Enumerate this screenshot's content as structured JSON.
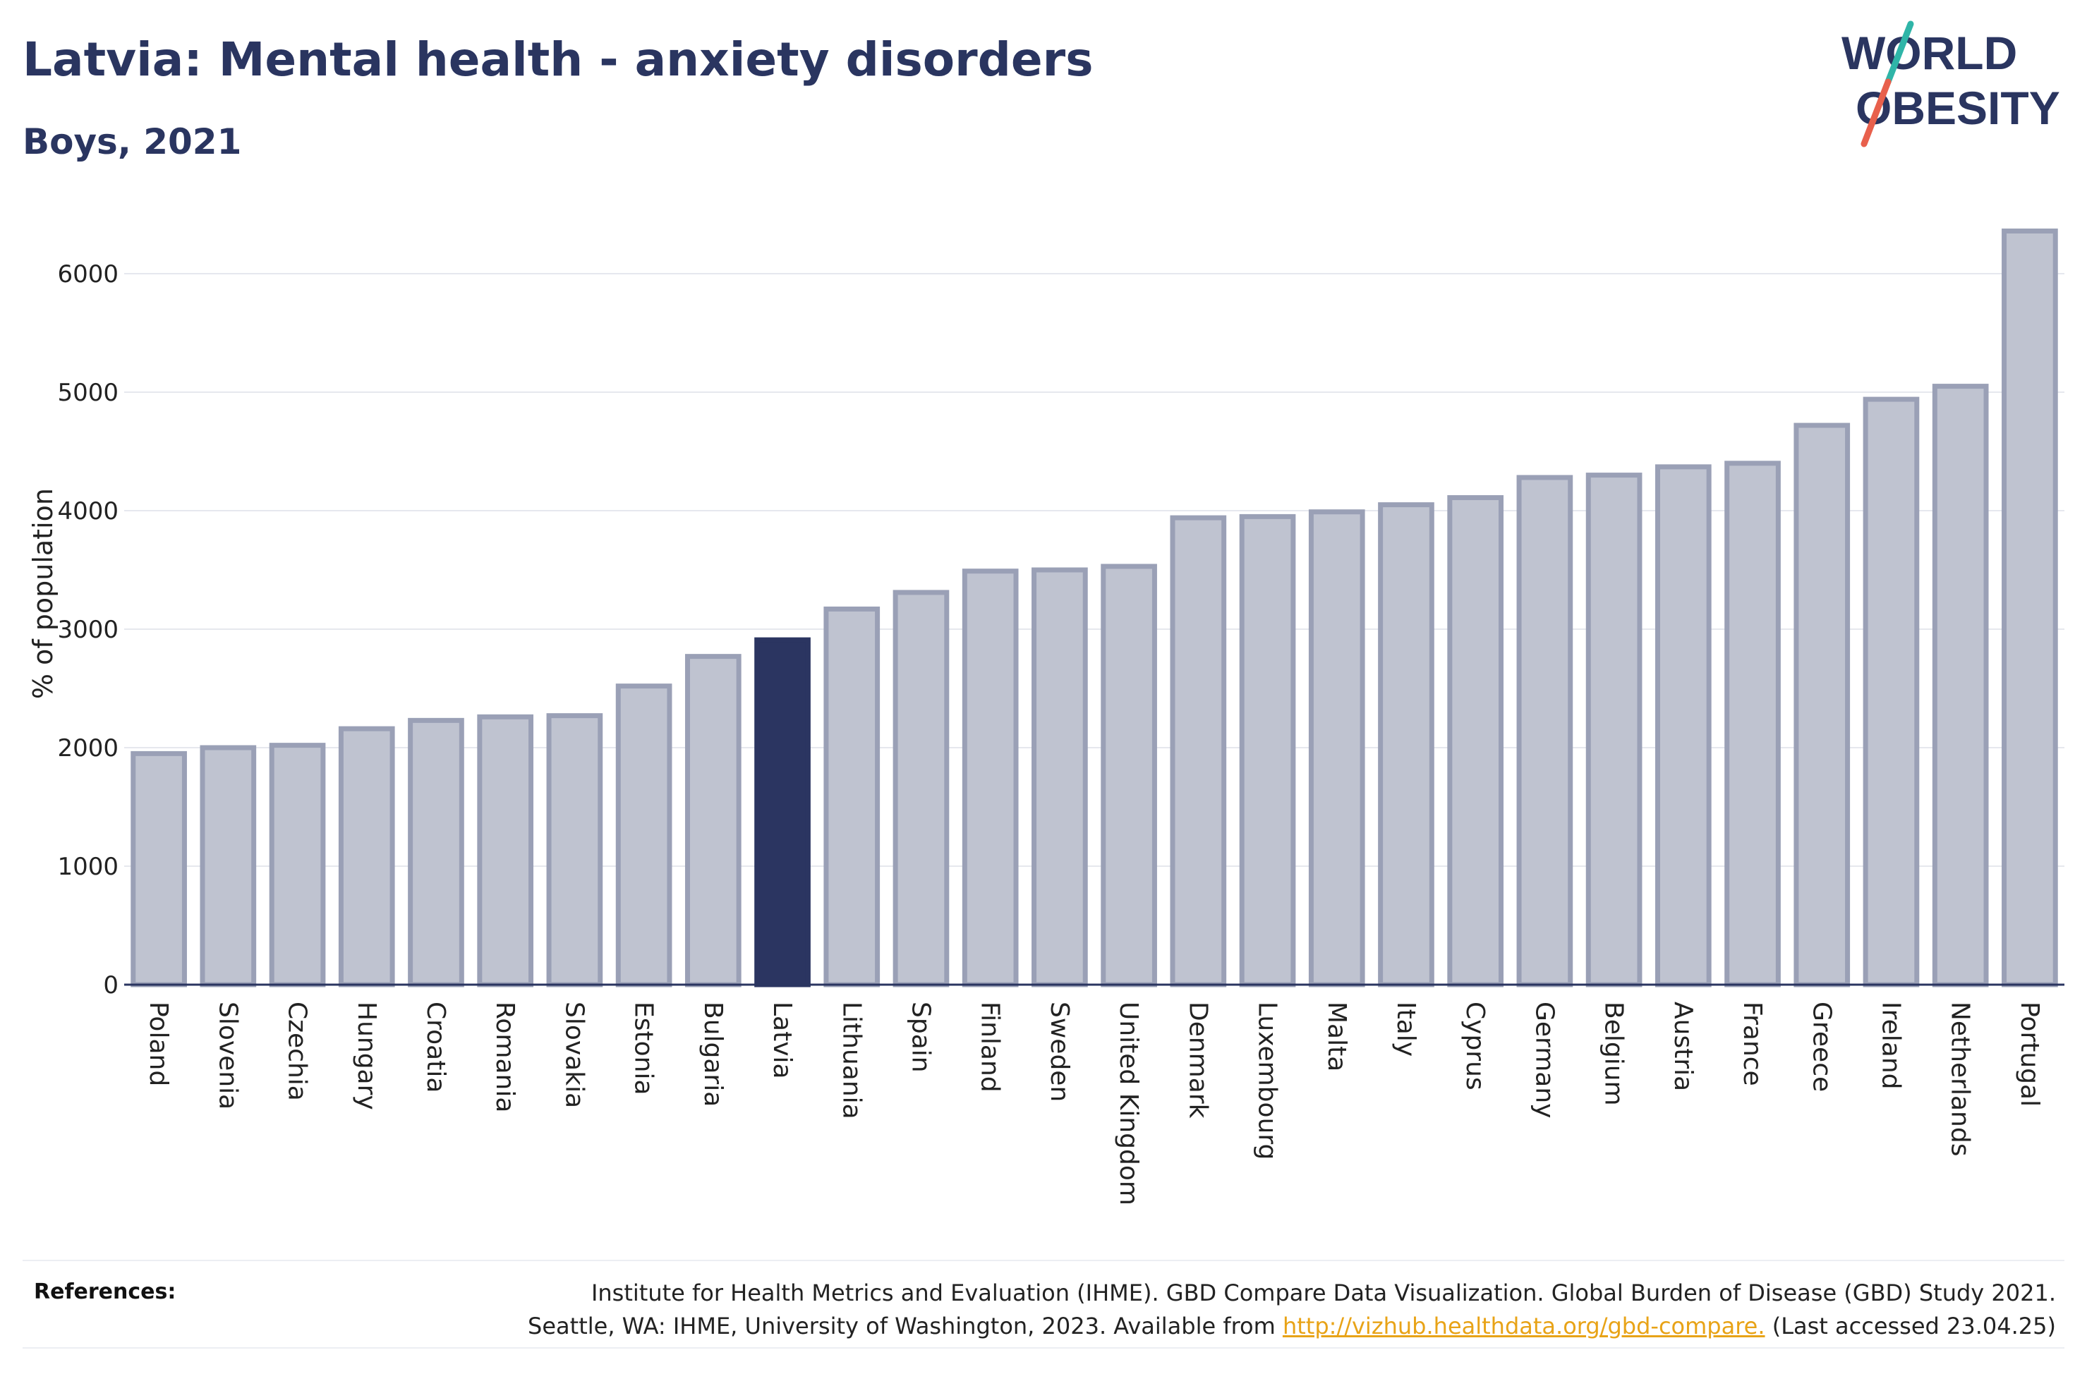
{
  "title": "Latvia: Mental health - anxiety disorders",
  "subtitle": "Boys, 2021",
  "logo": {
    "line1": "WORLD",
    "line2": "OBESITY",
    "colors": {
      "text": "#2a3560",
      "slash_top": "#2fb5a8",
      "slash_bottom": "#e8604c"
    }
  },
  "colors": {
    "highlight": "#2b3561",
    "bar_fill": "#bfc3d0",
    "bar_stroke": "#9aa0b6",
    "grid": "#e6e8ee",
    "axis": "#2a3560",
    "link": "#e8a317"
  },
  "chart_data": {
    "type": "bar",
    "title": "Latvia: Mental health - anxiety disorders",
    "subtitle": "Boys, 2021",
    "ylabel": "% of population",
    "xlabel": "",
    "ylim": [
      0,
      6500
    ],
    "yticks": [
      0,
      1000,
      2000,
      3000,
      4000,
      5000,
      6000
    ],
    "grid": true,
    "highlight": "Latvia",
    "categories": [
      "Poland",
      "Slovenia",
      "Czechia",
      "Hungary",
      "Croatia",
      "Romania",
      "Slovakia",
      "Estonia",
      "Bulgaria",
      "Latvia",
      "Lithuania",
      "Spain",
      "Finland",
      "Sweden",
      "United Kingdom",
      "Denmark",
      "Luxembourg",
      "Malta",
      "Italy",
      "Cyprus",
      "Germany",
      "Belgium",
      "Austria",
      "France",
      "Greece",
      "Ireland",
      "Netherlands",
      "Portugal"
    ],
    "values": [
      1950,
      2000,
      2020,
      2160,
      2230,
      2260,
      2270,
      2520,
      2770,
      2910,
      3170,
      3310,
      3490,
      3500,
      3530,
      3940,
      3950,
      3990,
      4050,
      4110,
      4280,
      4300,
      4370,
      4400,
      4720,
      4940,
      5050,
      6360
    ]
  },
  "references": {
    "label": "References:",
    "line1": "Institute for Health Metrics and Evaluation (IHME). GBD Compare Data Visualization. Global Burden of Disease (GBD) Study 2021.",
    "line2_prefix": "Seattle, WA: IHME, University of Washington, 2023. Available from ",
    "link": "http://vizhub.healthdata.org/gbd-compare.",
    "line2_suffix": " (Last accessed 23.04.25)"
  }
}
